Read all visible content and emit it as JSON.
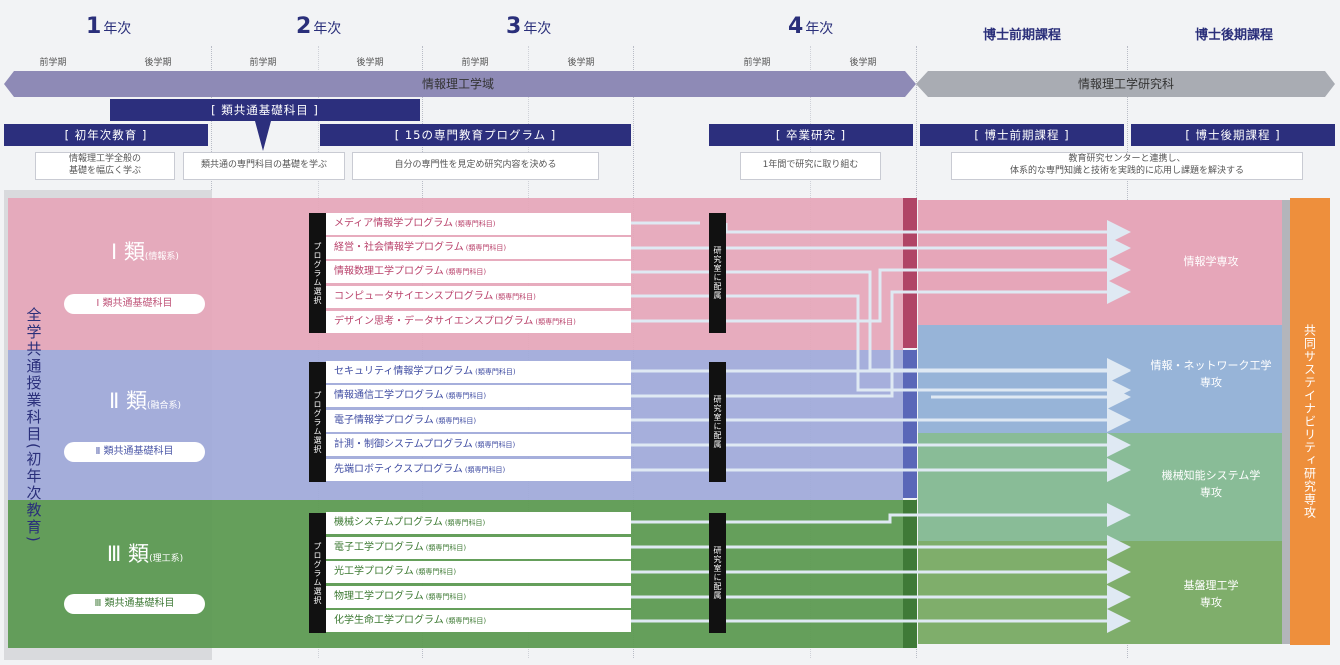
{
  "header": {
    "years": [
      {
        "num": "1",
        "suffix": "年次"
      },
      {
        "num": "2",
        "suffix": "年次"
      },
      {
        "num": "3",
        "suffix": "年次"
      },
      {
        "num": "4",
        "suffix": "年次"
      }
    ],
    "master_title": "博士前期課程",
    "doctor_title": "博士後期課程",
    "semesters": [
      "前学期",
      "後学期",
      "前学期",
      "後学期",
      "前学期",
      "後学期",
      "前学期",
      "後学期"
    ]
  },
  "bands": {
    "undergrad": "情報理工学域",
    "graduate": "情報理工学研究科"
  },
  "nav": {
    "common_basic": "[ 類共通基礎科目 ]",
    "first_year": "[ 初年次教育 ]",
    "programs15": "[ 15の専門教育プログラム ]",
    "graduation": "[ 卒業研究 ]",
    "master": "[ 博士前期課程 ]",
    "doctor": "[ 博士後期課程 ]"
  },
  "descriptions": {
    "first_year": "情報理工学全般の\n基礎を幅広く学ぶ",
    "common_basic": "類共通の専門科目の基礎を学ぶ",
    "programs": "自分の専門性を見定め研究内容を決める",
    "graduation": "1年間で研究に取り組む",
    "graduate": "教育研究センターと連携し、\n体系的な専門知識と技術を実践的に応用し課題を解決する"
  },
  "left_vertical": "全学共通授業科目(初年次教育)",
  "classes": [
    {
      "name": "Ⅰ 類",
      "sub": "(情報系)",
      "basic": "Ⅰ 類共通基礎科目",
      "color": "#e4a5b8"
    },
    {
      "name": "Ⅱ 類",
      "sub": "(融合系)",
      "basic": "Ⅱ 類共通基礎科目",
      "color": "#9aa4d6"
    },
    {
      "name": "Ⅲ 類",
      "sub": "(理工系)",
      "basic": "Ⅲ 類共通基礎科目",
      "color": "#5f9a55"
    }
  ],
  "program_tag": "(類専門科目)",
  "programs": [
    [
      "メディア情報学プログラム",
      "経営・社会情報学プログラム",
      "情報数理工学プログラム",
      "コンピュータサイエンスプログラム",
      "デザイン思考・データサイエンスプログラム"
    ],
    [
      "セキュリティ情報学プログラム",
      "情報通信工学プログラム",
      "電子情報学プログラム",
      "計測・制御システムプログラム",
      "先端ロボティクスプログラム"
    ],
    [
      "機械システムプログラム",
      "電子工学プログラム",
      "光工学プログラム",
      "物理工学プログラム",
      "化学生命工学プログラム"
    ]
  ],
  "selection_label": "プログラム選択",
  "lab_label": "研究室に配属",
  "majors": [
    {
      "name": "情報学専攻"
    },
    {
      "name": "情報・ネットワーク工学\n専攻"
    },
    {
      "name": "機械知能システム学\n専攻"
    },
    {
      "name": "基盤理工学\n専攻"
    }
  ],
  "sustainability": "共同サステイナビリティ研究専攻"
}
